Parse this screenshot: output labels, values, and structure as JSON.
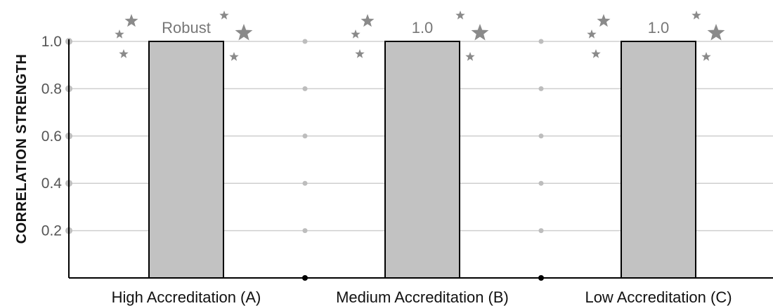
{
  "chart_data": {
    "type": "bar",
    "categories": [
      "High Accreditation (A)",
      "Medium Accreditation (B)",
      "Low Accreditation (C)"
    ],
    "values": [
      1.0,
      1.0,
      1.0
    ],
    "data_labels": [
      "Robust",
      "1.0",
      "1.0"
    ],
    "title": "",
    "xlabel": "",
    "ylabel": "CORRELATION STRENGTH",
    "ylim": [
      0,
      1.0
    ],
    "yticks": [
      0.2,
      0.4,
      0.6,
      0.8,
      1.0
    ],
    "ytick_labels": [
      "0.2",
      "0.4",
      "0.6",
      "0.8",
      "1.0"
    ],
    "grid": true,
    "colors": {
      "bar": "#c2c2c2",
      "grid": "#cfcfcf",
      "markers": "#8a8a8a"
    },
    "decorations": "star-icon clusters beside each bar"
  }
}
